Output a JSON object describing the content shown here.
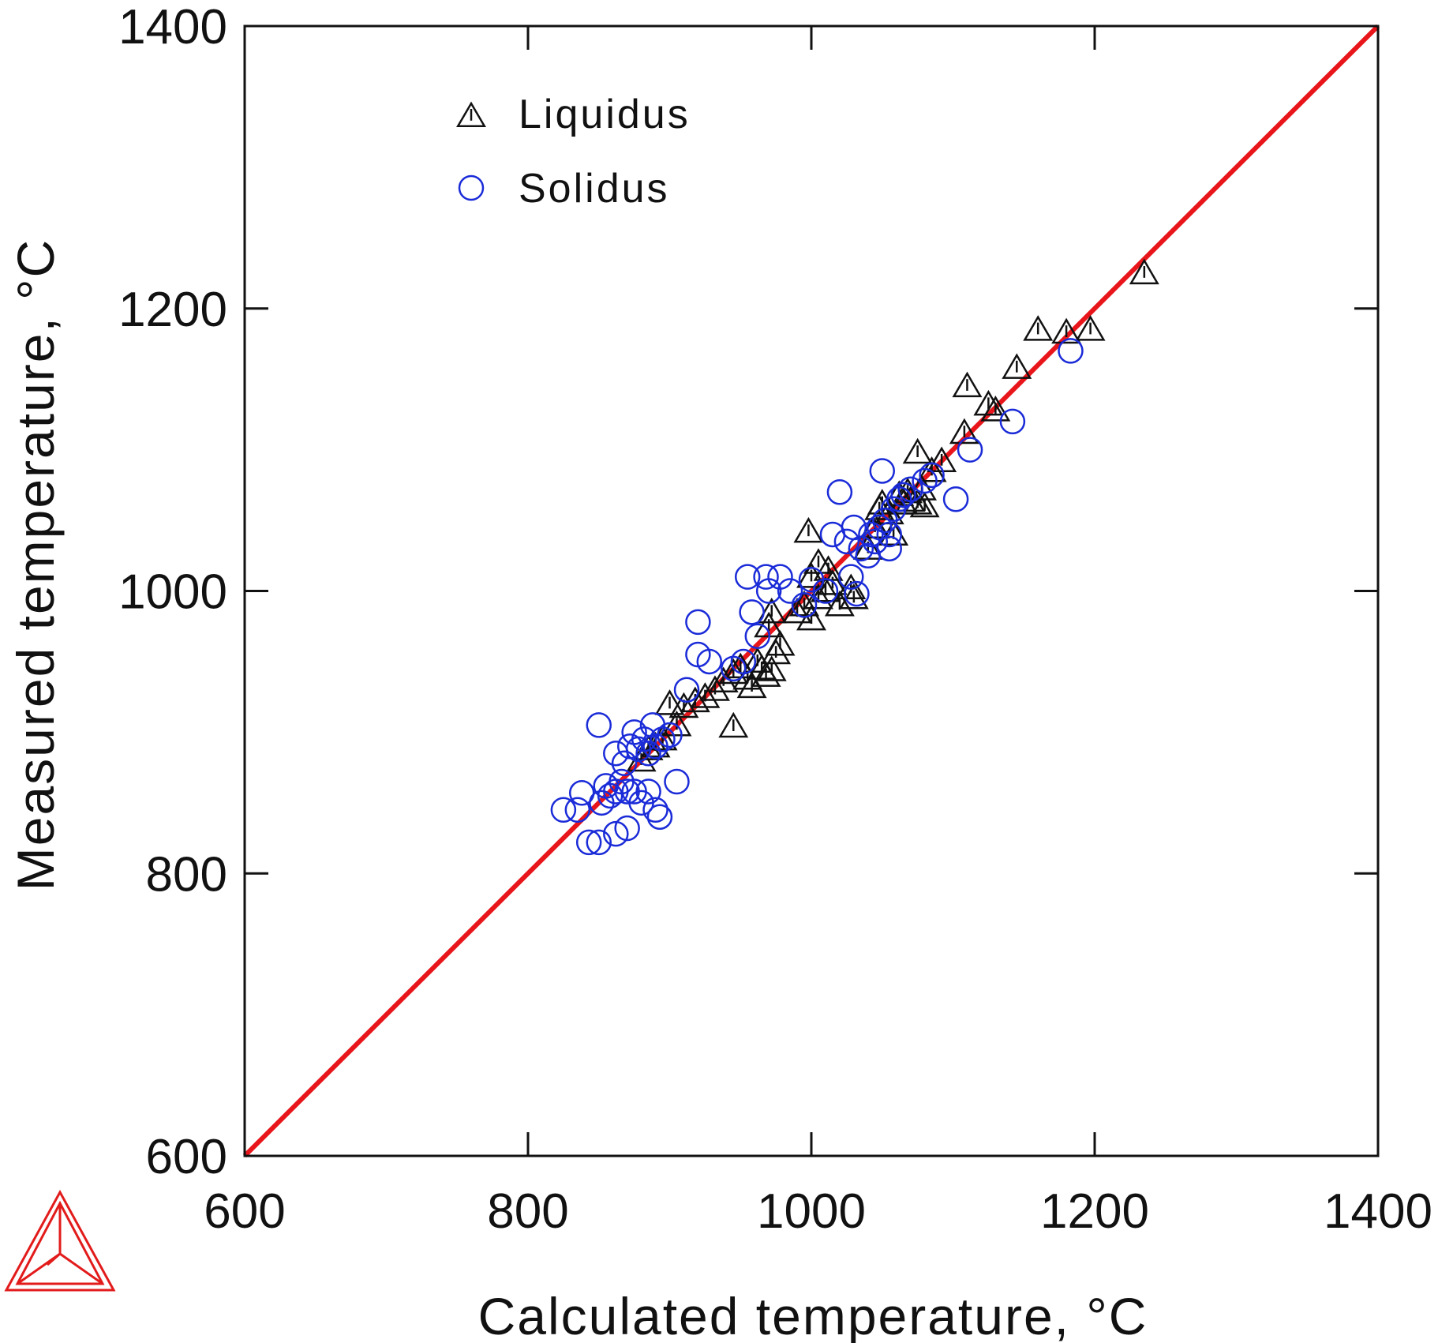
{
  "chart_data": {
    "type": "scatter",
    "xlabel": "Calculated temperature, °C",
    "ylabel": "Measured temperature, °C",
    "xlim": [
      600,
      1400
    ],
    "ylim": [
      600,
      1400
    ],
    "xticks": [
      600,
      800,
      1000,
      1200,
      1400
    ],
    "yticks": [
      600,
      800,
      1000,
      1200,
      1400
    ],
    "grid": false,
    "legend_position": "top-left",
    "reference_line": {
      "from": [
        600,
        600
      ],
      "to": [
        1400,
        1400
      ],
      "color": "#e8161b"
    },
    "series": [
      {
        "name": "Liquidus",
        "marker": "triangle",
        "color": "#111111",
        "points": [
          [
            945,
            904
          ],
          [
            900,
            920
          ],
          [
            910,
            918
          ],
          [
            918,
            922
          ],
          [
            925,
            925
          ],
          [
            932,
            930
          ],
          [
            938,
            936
          ],
          [
            945,
            942
          ],
          [
            950,
            946
          ],
          [
            955,
            938
          ],
          [
            958,
            932
          ],
          [
            962,
            950
          ],
          [
            965,
            945
          ],
          [
            968,
            940
          ],
          [
            972,
            944
          ],
          [
            975,
            956
          ],
          [
            978,
            962
          ],
          [
            970,
            975
          ],
          [
            972,
            985
          ],
          [
            990,
            985
          ],
          [
            995,
            990
          ],
          [
            1000,
            980
          ],
          [
            1005,
            995
          ],
          [
            1010,
            1000
          ],
          [
            1015,
            1005
          ],
          [
            1020,
            990
          ],
          [
            1028,
            1002
          ],
          [
            1030,
            995
          ],
          [
            998,
            1042
          ],
          [
            1000,
            1010
          ],
          [
            1005,
            1020
          ],
          [
            1012,
            1015
          ],
          [
            1040,
            1030
          ],
          [
            1045,
            1045
          ],
          [
            1048,
            1058
          ],
          [
            1050,
            1062
          ],
          [
            1055,
            1055
          ],
          [
            1058,
            1040
          ],
          [
            1062,
            1068
          ],
          [
            1065,
            1062
          ],
          [
            1068,
            1070
          ],
          [
            1070,
            1064
          ],
          [
            1075,
            1062
          ],
          [
            1078,
            1072
          ],
          [
            1080,
            1060
          ],
          [
            1085,
            1085
          ],
          [
            1075,
            1098
          ],
          [
            1092,
            1092
          ],
          [
            1108,
            1112
          ],
          [
            1110,
            1145
          ],
          [
            1125,
            1132
          ],
          [
            1130,
            1128
          ],
          [
            1145,
            1158
          ],
          [
            1160,
            1185
          ],
          [
            1180,
            1183
          ],
          [
            1197,
            1185
          ],
          [
            1235,
            1225
          ],
          [
            880,
            880
          ],
          [
            885,
            888
          ],
          [
            890,
            890
          ],
          [
            895,
            895
          ],
          [
            905,
            905
          ]
        ]
      },
      {
        "name": "Solidus",
        "marker": "circle",
        "color": "#1a2bd8",
        "points": [
          [
            825,
            845
          ],
          [
            835,
            845
          ],
          [
            838,
            857
          ],
          [
            843,
            822
          ],
          [
            850,
            822
          ],
          [
            852,
            850
          ],
          [
            855,
            862
          ],
          [
            858,
            855
          ],
          [
            862,
            858
          ],
          [
            866,
            865
          ],
          [
            870,
            858
          ],
          [
            875,
            858
          ],
          [
            880,
            850
          ],
          [
            885,
            858
          ],
          [
            862,
            828
          ],
          [
            870,
            832
          ],
          [
            890,
            845
          ],
          [
            893,
            840
          ],
          [
            850,
            905
          ],
          [
            862,
            885
          ],
          [
            868,
            878
          ],
          [
            872,
            890
          ],
          [
            875,
            900
          ],
          [
            878,
            888
          ],
          [
            882,
            895
          ],
          [
            885,
            885
          ],
          [
            888,
            905
          ],
          [
            890,
            890
          ],
          [
            895,
            895
          ],
          [
            900,
            898
          ],
          [
            905,
            865
          ],
          [
            912,
            930
          ],
          [
            920,
            978
          ],
          [
            920,
            955
          ],
          [
            928,
            950
          ],
          [
            945,
            945
          ],
          [
            952,
            950
          ],
          [
            955,
            1010
          ],
          [
            958,
            985
          ],
          [
            962,
            968
          ],
          [
            968,
            1010
          ],
          [
            970,
            1000
          ],
          [
            978,
            1010
          ],
          [
            985,
            1000
          ],
          [
            995,
            990
          ],
          [
            1000,
            1008
          ],
          [
            1010,
            1000
          ],
          [
            1015,
            1040
          ],
          [
            1020,
            1070
          ],
          [
            1025,
            1035
          ],
          [
            1028,
            1010
          ],
          [
            1030,
            1045
          ],
          [
            1032,
            998
          ],
          [
            1035,
            1030
          ],
          [
            1040,
            1025
          ],
          [
            1042,
            1040
          ],
          [
            1045,
            1035
          ],
          [
            1048,
            1045
          ],
          [
            1050,
            1085
          ],
          [
            1052,
            1050
          ],
          [
            1055,
            1040
          ],
          [
            1055,
            1030
          ],
          [
            1058,
            1058
          ],
          [
            1062,
            1065
          ],
          [
            1065,
            1068
          ],
          [
            1070,
            1072
          ],
          [
            1080,
            1078
          ],
          [
            1085,
            1082
          ],
          [
            1102,
            1065
          ],
          [
            1112,
            1100
          ],
          [
            1142,
            1120
          ],
          [
            1183,
            1170
          ]
        ]
      }
    ],
    "legend": [
      {
        "label": "Liquidus",
        "marker": "triangle",
        "color": "#111111"
      },
      {
        "label": "Solidus",
        "marker": "circle",
        "color": "#1a2bd8"
      }
    ]
  }
}
